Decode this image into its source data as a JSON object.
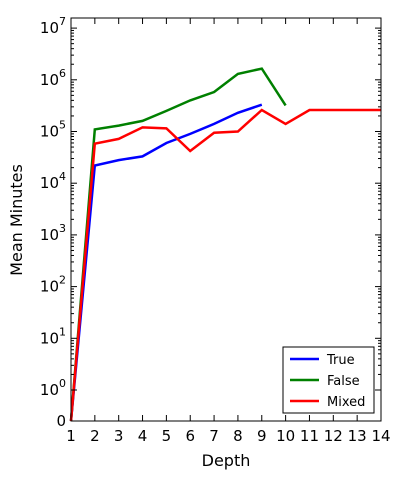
{
  "chart_data": {
    "type": "line",
    "title": "",
    "xlabel": "Depth",
    "ylabel": "Mean Minutes",
    "xlim": [
      1,
      14
    ],
    "x_ticks": [
      1,
      2,
      3,
      4,
      5,
      6,
      7,
      8,
      9,
      10,
      11,
      12,
      13,
      14
    ],
    "yscale": "symlog",
    "y_ticks": [
      {
        "value": 0,
        "base": "0",
        "exp": ""
      },
      {
        "value": 1,
        "base": "10",
        "exp": "0"
      },
      {
        "value": 10,
        "base": "10",
        "exp": "1"
      },
      {
        "value": 100,
        "base": "10",
        "exp": "2"
      },
      {
        "value": 1000,
        "base": "10",
        "exp": "3"
      },
      {
        "value": 10000,
        "base": "10",
        "exp": "4"
      },
      {
        "value": 100000,
        "base": "10",
        "exp": "5"
      },
      {
        "value": 1000000,
        "base": "10",
        "exp": "6"
      },
      {
        "value": 10000000,
        "base": "10",
        "exp": "7"
      }
    ],
    "ylim": [
      0,
      10000000
    ],
    "grid": false,
    "legend_position": "bottom-right",
    "series": [
      {
        "name": "True",
        "color": "#0000ff",
        "x": [
          1,
          2,
          3,
          4,
          5,
          6,
          7,
          8,
          9
        ],
        "y": [
          0,
          22000,
          28000,
          33000,
          60000,
          90000,
          140000,
          230000,
          330000
        ]
      },
      {
        "name": "False",
        "color": "#008000",
        "x": [
          1,
          2,
          3,
          4,
          5,
          6,
          7,
          8,
          9,
          10
        ],
        "y": [
          0,
          110000,
          130000,
          160000,
          250000,
          400000,
          580000,
          1300000,
          1650000,
          320000
        ]
      },
      {
        "name": "Mixed",
        "color": "#ff0000",
        "x": [
          1,
          2,
          3,
          4,
          5,
          6,
          7,
          8,
          9,
          10,
          11,
          12,
          13,
          14
        ],
        "y": [
          0,
          58000,
          72000,
          120000,
          115000,
          42000,
          95000,
          100000,
          260000,
          140000,
          260000,
          260000,
          260000,
          260000
        ]
      }
    ]
  }
}
